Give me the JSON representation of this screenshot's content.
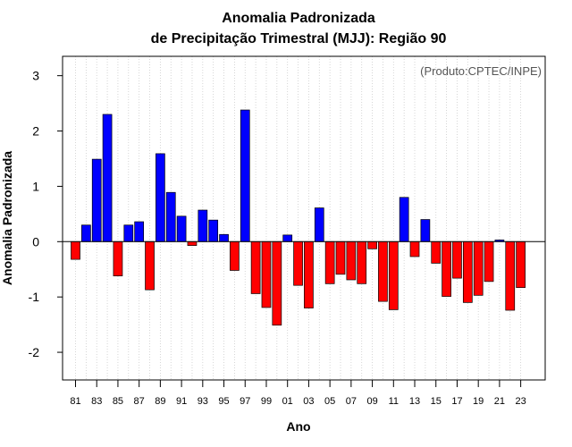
{
  "chart_data": {
    "type": "bar",
    "title_lines": [
      "Anomalia Padronizada",
      "de Precipitação Trimestral (MJJ): Região 90"
    ],
    "xlabel": "Ano",
    "ylabel": "Anomalia Padronizada",
    "watermark": "(Produto:CPTEC/INPE)",
    "ylim": [
      -2.5,
      3.35
    ],
    "yticks": [
      -2,
      -1,
      0,
      1,
      2,
      3
    ],
    "ytick_labels": [
      "-2",
      "-1",
      "0",
      "1",
      "2",
      "3"
    ],
    "grid": "vertical dotted",
    "colors": {
      "positive": "#0000ff",
      "negative": "#ff0000",
      "edge": "#000000"
    },
    "categories": [
      "81",
      "82",
      "83",
      "84",
      "85",
      "86",
      "87",
      "88",
      "89",
      "90",
      "91",
      "92",
      "93",
      "94",
      "95",
      "96",
      "97",
      "98",
      "99",
      "00",
      "01",
      "02",
      "03",
      "04",
      "05",
      "06",
      "07",
      "08",
      "09",
      "10",
      "11",
      "12",
      "13",
      "14",
      "15",
      "16",
      "17",
      "18",
      "19",
      "20",
      "21",
      "22",
      "23"
    ],
    "tick_labels": [
      "81",
      "83",
      "85",
      "87",
      "89",
      "91",
      "93",
      "95",
      "97",
      "99",
      "01",
      "03",
      "05",
      "07",
      "09",
      "11",
      "13",
      "15",
      "17",
      "19",
      "21",
      "23"
    ],
    "values": [
      -0.32,
      0.3,
      1.49,
      2.3,
      -0.62,
      0.3,
      0.36,
      -0.87,
      1.59,
      0.89,
      0.46,
      -0.07,
      0.57,
      0.39,
      0.13,
      -0.52,
      2.38,
      -0.94,
      -1.19,
      -1.51,
      0.12,
      -0.79,
      -1.2,
      0.61,
      -0.76,
      -0.59,
      -0.69,
      -0.76,
      -0.13,
      -1.08,
      -1.23,
      0.8,
      -0.27,
      0.4,
      -0.39,
      -0.99,
      -0.66,
      -1.1,
      -0.97,
      -0.72,
      0.03,
      -1.24,
      -0.83
    ]
  }
}
